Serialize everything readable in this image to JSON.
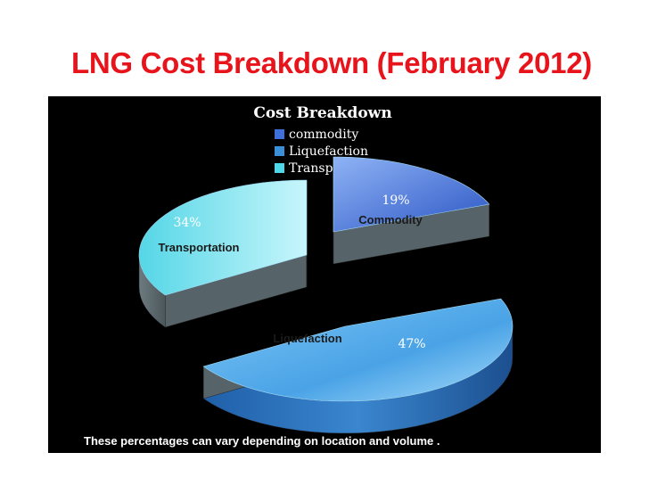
{
  "slide": {
    "title": "LNG Cost Breakdown (February 2012)",
    "footnote": "These percentages can vary depending on location and volume ."
  },
  "colors": {
    "title_red": "#e8141b",
    "commodity": "#3f6fd8",
    "liquefaction": "#5fb0ea",
    "transportation": "#4fd6e8",
    "side_gray": "#5f6b70",
    "background": "#000000"
  },
  "chart_data": {
    "type": "pie",
    "title": "Cost Breakdown",
    "legend_position": "top",
    "legend": [
      "commodity",
      "Liquefaction",
      "Transportation"
    ],
    "slices": [
      {
        "legend": "commodity",
        "label": "Commodity",
        "value": 19,
        "display": "19%"
      },
      {
        "legend": "Liquefaction",
        "label": "Liquefaction",
        "value": 47,
        "display": "47%"
      },
      {
        "legend": "Transportation",
        "label": "Transportation",
        "value": 34,
        "display": "34%"
      }
    ]
  }
}
